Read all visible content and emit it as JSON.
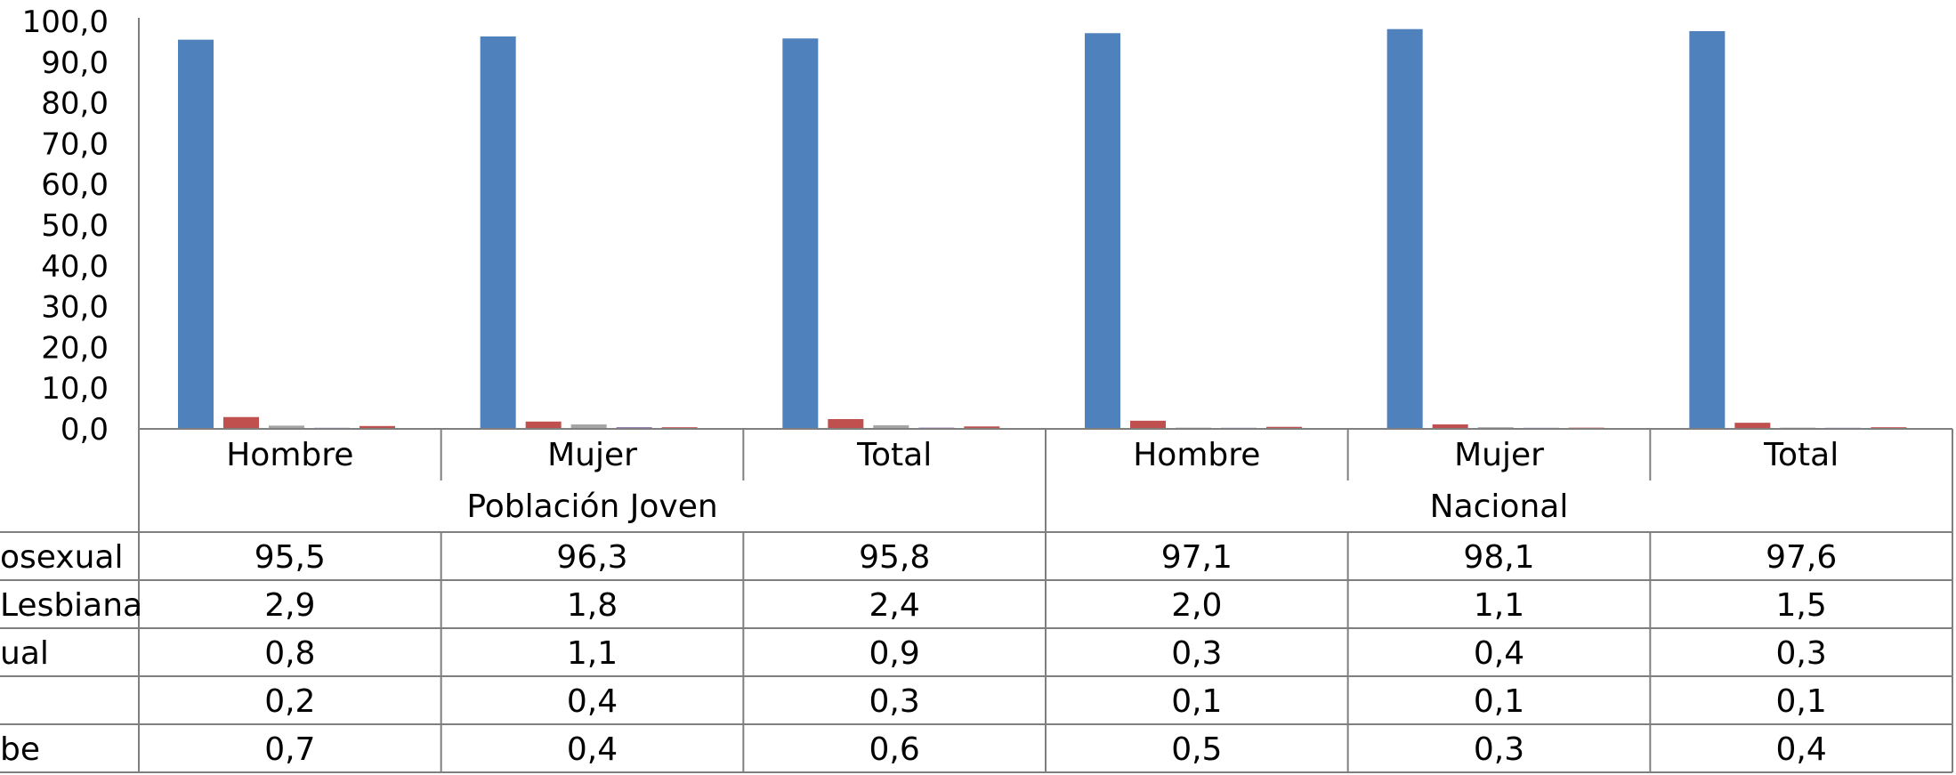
{
  "chart_data": {
    "type": "bar",
    "ylim": [
      0,
      100
    ],
    "yticks": [
      "0,0",
      "10,0",
      "20,0",
      "30,0",
      "40,0",
      "50,0",
      "60,0",
      "70,0",
      "80,0",
      "90,0",
      "100,0"
    ],
    "categories": [
      "Hombre",
      "Mujer",
      "Total",
      "Hombre",
      "Mujer",
      "Total"
    ],
    "groups": [
      {
        "label": "Población Joven",
        "span": 3
      },
      {
        "label": "Nacional",
        "span": 3
      }
    ],
    "series": [
      {
        "name": "osexual",
        "color": "#4F81BD",
        "values": [
          95.5,
          96.3,
          95.8,
          97.1,
          98.1,
          97.6
        ],
        "labels": [
          "95,5",
          "96,3",
          "95,8",
          "97,1",
          "98,1",
          "97,6"
        ]
      },
      {
        "name": "Lesbiana",
        "color": "#C0504D",
        "values": [
          2.9,
          1.8,
          2.4,
          2.0,
          1.1,
          1.5
        ],
        "labels": [
          "2,9",
          "1,8",
          "2,4",
          "2,0",
          "1,1",
          "1,5"
        ]
      },
      {
        "name": "ual",
        "color": "#A5A5A5",
        "values": [
          0.8,
          1.1,
          0.9,
          0.3,
          0.4,
          0.3
        ],
        "labels": [
          "0,8",
          "1,1",
          "0,9",
          "0,3",
          "0,4",
          "0,3"
        ]
      },
      {
        "name": "",
        "color": "#8064A2",
        "values": [
          0.2,
          0.4,
          0.3,
          0.1,
          0.1,
          0.1
        ],
        "labels": [
          "0,2",
          "0,4",
          "0,3",
          "0,1",
          "0,1",
          "0,1"
        ]
      },
      {
        "name": "be",
        "color": "#C0504D",
        "values": [
          0.7,
          0.4,
          0.6,
          0.5,
          0.3,
          0.4
        ],
        "labels": [
          "0,7",
          "0,4",
          "0,6",
          "0,5",
          "0,3",
          "0,4"
        ]
      }
    ],
    "grid": false,
    "legend": "data-table"
  }
}
